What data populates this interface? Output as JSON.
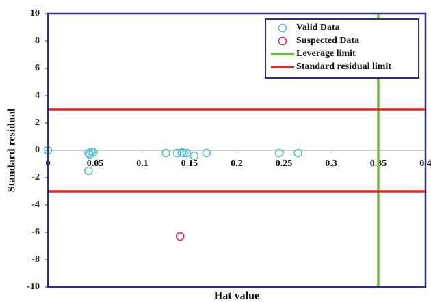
{
  "chart_data": {
    "type": "scatter",
    "xlabel": "Hat value",
    "ylabel": "Standard residual",
    "xlim": [
      0,
      0.4
    ],
    "xticks": [
      0,
      0.05,
      0.1,
      0.15,
      0.2,
      0.25,
      0.3,
      0.35,
      0.4
    ],
    "ylim": [
      -10,
      10
    ],
    "yticks": [
      -10,
      -8,
      -6,
      -4,
      -2,
      0,
      2,
      4,
      6,
      8,
      10
    ],
    "series": [
      {
        "name": "Valid Data",
        "color": "#4fb8cf",
        "x": [
          0,
          0.043,
          0.044,
          0.046,
          0.048,
          0.043,
          0.125,
          0.137,
          0.142,
          0.144,
          0.147,
          0.155,
          0.168,
          0.245,
          0.265
        ],
        "values": [
          0,
          -0.2,
          -0.3,
          -0.1,
          -0.15,
          -1.5,
          -0.2,
          -0.2,
          -0.15,
          -0.2,
          -0.2,
          -0.4,
          -0.2,
          -0.2,
          -0.2
        ]
      },
      {
        "name": "Suspected Data",
        "color": "#d62050",
        "x": [
          0.14
        ],
        "values": [
          -6.3
        ]
      }
    ],
    "reference_lines": [
      {
        "name": "Leverage limit",
        "color": "#6cbf3c",
        "x": 0.35
      },
      {
        "name": "Standard residual limit",
        "color": "#e52421",
        "y": [
          3,
          -3
        ]
      }
    ],
    "legend": "top-right"
  }
}
